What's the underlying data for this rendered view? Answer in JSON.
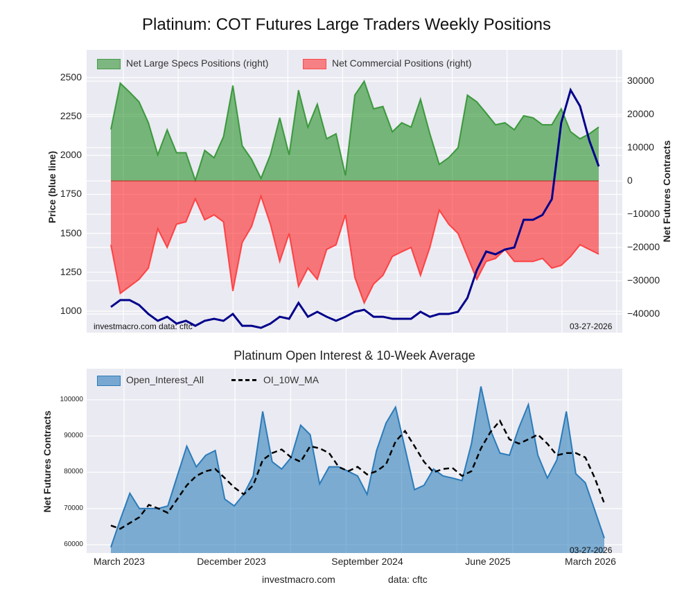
{
  "title": "Platinum: COT Futures Large Traders Weekly Positions",
  "footer": {
    "site": "investmacro.com",
    "source": "data: cftc"
  },
  "chart_data": [
    {
      "type": "area",
      "title": "Platinum: COT Futures Large Traders Weekly Positions",
      "ylabel_left": "Price (blue line)",
      "ylabel_right": "Net Futures Contracts",
      "ylim_left": [
        862,
        2678
      ],
      "ylim_right": [
        -45600,
        39400
      ],
      "yticks_left": [
        "2500",
        "2250",
        "2000",
        "1750",
        "1500",
        "1250",
        "1000"
      ],
      "yticks_right": [
        "30000",
        "20000",
        "10000",
        "0",
        "−10000",
        "−20000",
        "−30000",
        "−40000"
      ],
      "legend": [
        "Net Large Specs Positions (right)",
        "Net Commercial Positions (right)"
      ],
      "legend_placement": "top-left",
      "grid": true,
      "watermark": "investmacro.com   data: cftc",
      "date_stamp": "03-27-2026",
      "colors": {
        "specs": "#228b22",
        "commercial": "#ff2a2a",
        "price": "#00008b",
        "background": "#eaeaf2"
      },
      "x": [
        "2023-03-28",
        "2023-04-18",
        "2023-05-09",
        "2023-05-30",
        "2023-06-20",
        "2023-07-11",
        "2023-08-01",
        "2023-08-22",
        "2023-09-12",
        "2023-10-03",
        "2023-10-24",
        "2023-11-14",
        "2023-12-05",
        "2023-12-26",
        "2024-01-16",
        "2024-02-06",
        "2024-02-27",
        "2024-03-19",
        "2024-04-09",
        "2024-04-30",
        "2024-05-21",
        "2024-06-11",
        "2024-07-02",
        "2024-07-23",
        "2024-08-13",
        "2024-09-03",
        "2024-09-24",
        "2024-10-15",
        "2024-11-05",
        "2024-11-26",
        "2024-12-17",
        "2025-01-07",
        "2025-01-28",
        "2025-02-18",
        "2025-03-11",
        "2025-04-01",
        "2025-04-22",
        "2025-05-13",
        "2025-06-03",
        "2025-06-24",
        "2025-07-15",
        "2025-08-05",
        "2025-08-26",
        "2025-09-16",
        "2025-10-07",
        "2025-10-28",
        "2025-11-18",
        "2025-12-09",
        "2025-12-30",
        "2026-01-20",
        "2026-02-10",
        "2026-03-03",
        "2026-03-24"
      ],
      "series": [
        {
          "name": "Net Large Specs Positions (right)",
          "axis": "right",
          "values": [
            15500,
            29400,
            26700,
            23800,
            17500,
            7900,
            15400,
            8500,
            8500,
            200,
            9200,
            7000,
            13300,
            28700,
            10600,
            6500,
            800,
            7900,
            19000,
            7900,
            27300,
            16200,
            23100,
            12700,
            14200,
            1700,
            25800,
            30000,
            21700,
            22400,
            14800,
            17500,
            16200,
            24600,
            14200,
            5000,
            7000,
            10000,
            25800,
            23800,
            20400,
            16900,
            17500,
            15400,
            19600,
            19000,
            16900,
            16900,
            21700,
            14800,
            12700,
            14200,
            16200
          ]
        },
        {
          "name": "Net Commercial Positions (right)",
          "axis": "right",
          "values": [
            -19200,
            -33800,
            -31700,
            -29600,
            -26200,
            -14400,
            -20000,
            -13000,
            -12300,
            -5400,
            -11700,
            -10200,
            -12300,
            -33100,
            -18500,
            -13700,
            -4600,
            -13000,
            -24200,
            -15800,
            -31700,
            -26200,
            -29600,
            -20600,
            -19200,
            -10200,
            -29000,
            -36700,
            -31000,
            -28400,
            -22700,
            -21300,
            -20000,
            -28400,
            -20000,
            -8800,
            -13000,
            -15800,
            -22700,
            -29600,
            -24200,
            -23300,
            -20600,
            -24200,
            -24200,
            -24200,
            -23300,
            -26200,
            -25400,
            -22700,
            -19200,
            -20600,
            -22000
          ]
        },
        {
          "axis": "left",
          "values": [
            1027,
            1071,
            1071,
            1040,
            982,
            938,
            964,
            920,
            938,
            906,
            938,
            951,
            938,
            982,
            906,
            906,
            893,
            920,
            964,
            951,
            1053,
            964,
            996,
            964,
            938,
            964,
            996,
            1009,
            964,
            964,
            951,
            951,
            951,
            996,
            964,
            982,
            982,
            996,
            1085,
            1263,
            1383,
            1365,
            1396,
            1409,
            1587,
            1587,
            1618,
            1720,
            2210,
            2420,
            2317,
            2095,
            1930
          ]
        }
      ]
    },
    {
      "type": "area",
      "title": "Platinum Open Interest & 10-Week Average",
      "ylabel": "Net Futures Contracts",
      "ylim": [
        57700,
        108600
      ],
      "yticks": [
        "100000",
        "90000",
        "80000",
        "70000",
        "60000"
      ],
      "xtick_labels": [
        "March 2023",
        "December 2023",
        "September 2024",
        "June 2025",
        "March 2026"
      ],
      "legend": [
        "Open_Interest_All",
        "OI_10W_MA"
      ],
      "legend_placement": "top-left",
      "grid": true,
      "date_stamp": "03-27-2026",
      "colors": {
        "open_interest": "#2b7bba",
        "ma": "#000000"
      },
      "series": [
        {
          "name": "Open_Interest_All",
          "values": [
            59300,
            67000,
            74200,
            70000,
            70000,
            70000,
            70700,
            79000,
            87200,
            81500,
            84700,
            86000,
            72600,
            70700,
            73900,
            79000,
            96800,
            82900,
            80900,
            84100,
            93000,
            90400,
            76800,
            81500,
            81500,
            80300,
            79000,
            73900,
            86000,
            93600,
            98000,
            86600,
            75200,
            76400,
            80900,
            79000,
            78400,
            77700,
            87900,
            103700,
            91700,
            85300,
            84700,
            92300,
            98700,
            84700,
            78400,
            83400,
            96800,
            79600,
            77100,
            69500,
            61800
          ]
        },
        {
          "name": "OI_10W_MA",
          "style": "dashed",
          "values": [
            65300,
            64400,
            66000,
            67600,
            71000,
            70000,
            68800,
            72600,
            76400,
            79000,
            80300,
            80900,
            78400,
            75800,
            73900,
            76400,
            83400,
            85300,
            86300,
            84100,
            82900,
            87200,
            86600,
            85300,
            81500,
            80300,
            81500,
            79400,
            80300,
            82200,
            88500,
            91400,
            87200,
            82900,
            80000,
            80900,
            81200,
            79000,
            80300,
            86600,
            91100,
            94200,
            89100,
            87900,
            89100,
            90400,
            87900,
            84700,
            85300,
            85300,
            84100,
            78400,
            71400
          ]
        }
      ]
    }
  ]
}
